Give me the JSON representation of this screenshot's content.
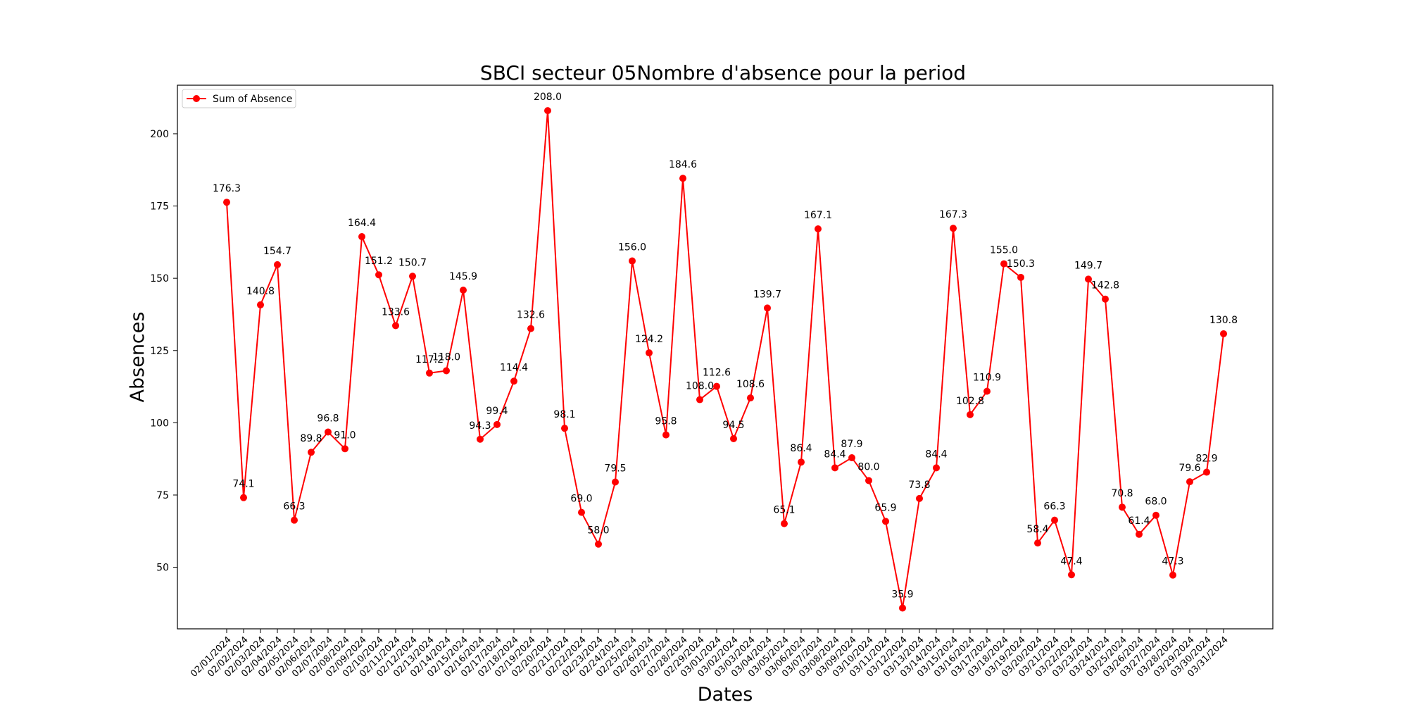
{
  "chart_data": {
    "type": "line",
    "title": "SBCI secteur 05Nombre d'absence pour la period",
    "xlabel": "Dates",
    "ylabel": "Absences",
    "legend": {
      "placement": "top-left",
      "entries": [
        "Sum of Absence"
      ]
    },
    "grid": false,
    "ylim": [
      28.7,
      216.8
    ],
    "yticks": [
      50,
      75,
      100,
      125,
      150,
      175,
      200
    ],
    "series_color": "#ff0000",
    "categories": [
      "02/01/2024",
      "02/02/2024",
      "02/03/2024",
      "02/04/2024",
      "02/05/2024",
      "02/06/2024",
      "02/07/2024",
      "02/08/2024",
      "02/09/2024",
      "02/10/2024",
      "02/11/2024",
      "02/12/2024",
      "02/13/2024",
      "02/14/2024",
      "02/15/2024",
      "02/16/2024",
      "02/17/2024",
      "02/18/2024",
      "02/19/2024",
      "02/20/2024",
      "02/21/2024",
      "02/22/2024",
      "02/23/2024",
      "02/24/2024",
      "02/25/2024",
      "02/26/2024",
      "02/27/2024",
      "02/28/2024",
      "02/29/2024",
      "03/01/2024",
      "03/02/2024",
      "03/03/2024",
      "03/04/2024",
      "03/05/2024",
      "03/06/2024",
      "03/07/2024",
      "03/08/2024",
      "03/09/2024",
      "03/10/2024",
      "03/11/2024",
      "03/12/2024",
      "03/13/2024",
      "03/14/2024",
      "03/15/2024",
      "03/16/2024",
      "03/17/2024",
      "03/18/2024",
      "03/19/2024",
      "03/20/2024",
      "03/21/2024",
      "03/22/2024",
      "03/23/2024",
      "03/24/2024",
      "03/25/2024",
      "03/26/2024",
      "03/27/2024",
      "03/28/2024",
      "03/29/2024",
      "03/30/2024",
      "03/31/2024"
    ],
    "series": [
      {
        "name": "Sum of Absence",
        "values": [
          176.3,
          74.1,
          140.8,
          154.7,
          66.3,
          89.8,
          96.8,
          91.0,
          164.4,
          151.2,
          133.6,
          150.7,
          117.2,
          118.0,
          145.9,
          94.3,
          99.4,
          114.4,
          132.6,
          208.0,
          98.1,
          69.0,
          58.0,
          79.5,
          156.0,
          124.2,
          95.8,
          184.6,
          108.0,
          112.6,
          94.5,
          108.6,
          139.7,
          65.1,
          86.4,
          167.1,
          84.4,
          87.9,
          80.0,
          65.9,
          35.9,
          73.8,
          84.4,
          167.3,
          102.8,
          110.9,
          155.0,
          150.3,
          58.4,
          66.3,
          47.4,
          149.7,
          142.8,
          70.8,
          61.4,
          68.0,
          47.3,
          79.6,
          82.9,
          130.8
        ]
      }
    ]
  }
}
